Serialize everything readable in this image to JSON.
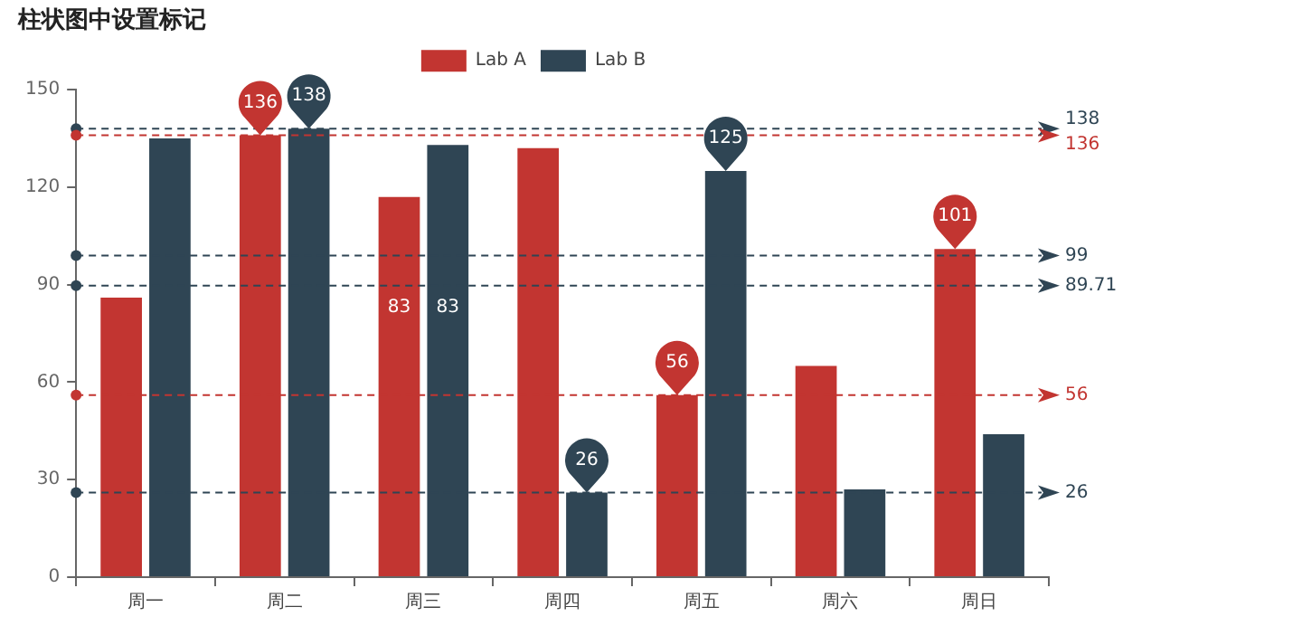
{
  "chart_data": {
    "type": "bar",
    "title": "柱状图中设置标记",
    "categories": [
      "周一",
      "周二",
      "周三",
      "周四",
      "周五",
      "周六",
      "周日"
    ],
    "series": [
      {
        "name": "Lab A",
        "color": "#c23531",
        "values": [
          86,
          136,
          117,
          132,
          56,
          65,
          101
        ],
        "value_labels": [
          null,
          "136",
          null,
          null,
          "56",
          null,
          "101"
        ]
      },
      {
        "name": "Lab B",
        "color": "#2f4554",
        "values": [
          135,
          138,
          133,
          26,
          125,
          27,
          44
        ],
        "value_labels": [
          null,
          "138",
          null,
          "26",
          "125",
          null,
          null
        ]
      }
    ],
    "ylim": [
      0,
      150
    ],
    "yticks": [
      0,
      30,
      60,
      90,
      120,
      150
    ],
    "grid": false,
    "legend": "top",
    "ref_lines": [
      {
        "axis": "y",
        "value": 138,
        "label": "138",
        "color": "#2f4554",
        "line_style": "dashed"
      },
      {
        "axis": "y",
        "value": 136,
        "label": "136",
        "color": "#c23531",
        "line_style": "dashed"
      },
      {
        "axis": "y",
        "value": 99,
        "label": "99",
        "color": "#2f4554",
        "line_style": "dashed"
      },
      {
        "axis": "y",
        "value": 89.71,
        "label": "89.71",
        "color": "#2f4554",
        "line_style": "dashed"
      },
      {
        "axis": "y",
        "value": 56,
        "label": "56",
        "color": "#c23531",
        "line_style": "dashed"
      },
      {
        "axis": "y",
        "value": 26,
        "label": "26",
        "color": "#2f4554",
        "line_style": "dashed"
      }
    ],
    "annotations": [
      {
        "text": "83",
        "x": "周三",
        "y": 83
      },
      {
        "text": "83",
        "x": "周三",
        "y": 83
      }
    ]
  }
}
